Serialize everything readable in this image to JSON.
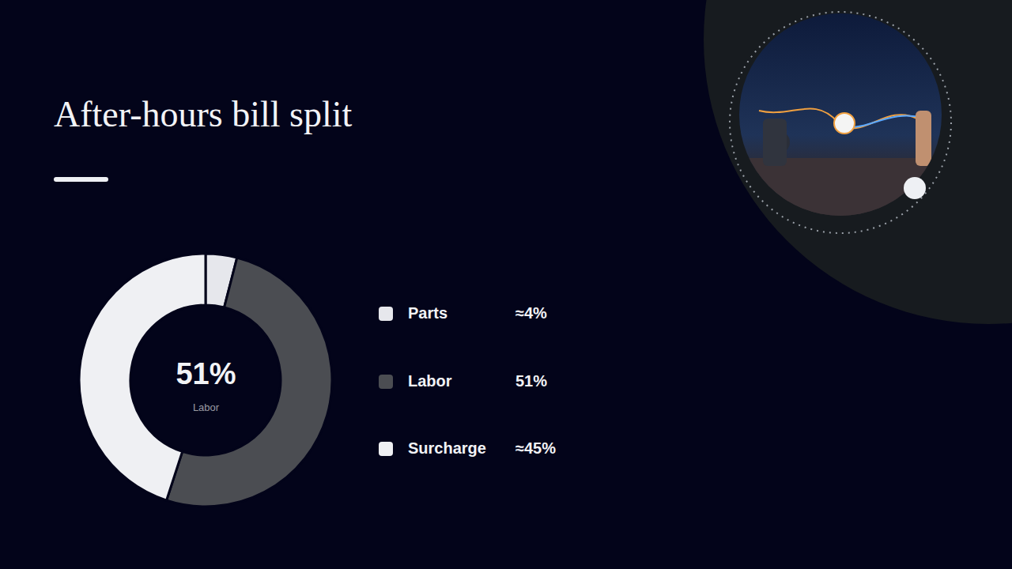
{
  "chart_data": {
    "type": "donut",
    "title": "After-hours bill split",
    "categories": [
      "Parts",
      "Labor",
      "Surcharge"
    ],
    "values": [
      4,
      51,
      45
    ],
    "value_labels": [
      "≈4%",
      "51%",
      "≈45%"
    ],
    "colors": [
      "#e6e7ec",
      "#4b4d52",
      "#eff0f3"
    ],
    "center_text": "51%",
    "center_subtext": "Labor",
    "legend": "right"
  }
}
